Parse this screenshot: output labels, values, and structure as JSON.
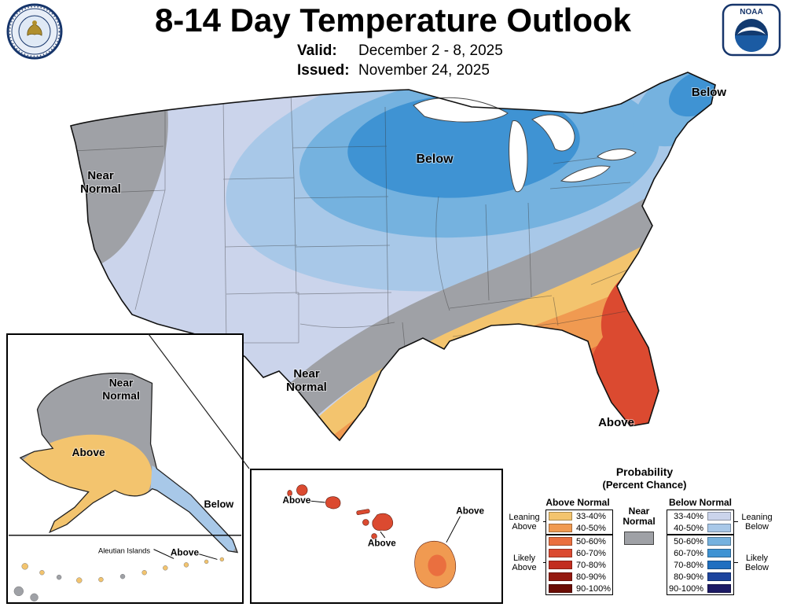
{
  "header": {
    "title": "8-14 Day Temperature Outlook",
    "valid_label": "Valid:",
    "valid_value": "December 2 - 8, 2025",
    "issued_label": "Issued:",
    "issued_value": "November 24, 2025"
  },
  "logos": {
    "noaa_text": "NOAA"
  },
  "colors": {
    "near_normal": "#9FA1A6",
    "above": [
      "#F3C46E",
      "#F09A51",
      "#EA6F3F",
      "#DB4A30",
      "#C22D1F",
      "#951A10",
      "#6B0D05"
    ],
    "below": [
      "#CBD4EB",
      "#A8C8E8",
      "#75B2DF",
      "#3F93D3",
      "#1F6FC0",
      "#1D449E",
      "#1D1B66"
    ]
  },
  "conus_labels": {
    "west_1": "Near",
    "west_2": "Normal",
    "midwest": "Below",
    "maine": "Below",
    "south_1": "Near",
    "south_2": "Normal",
    "florida": "Above"
  },
  "alaska": {
    "near_1": "Near",
    "near_2": "Normal",
    "above": "Above",
    "below": "Below",
    "aleutian": "Aleutian Islands",
    "aleutian_above": "Above"
  },
  "hawaii": {
    "above_1": "Above",
    "above_2": "Above",
    "above_3": "Above"
  },
  "legend": {
    "title": "Probability",
    "subtitle": "(Percent Chance)",
    "above_header": "Above Normal",
    "below_header": "Below Normal",
    "near_normal": "Near Normal",
    "leaning_above": "Leaning Above",
    "likely_above": "Likely Above",
    "leaning_below": "Leaning Below",
    "likely_below": "Likely Below",
    "ranges": [
      "33-40%",
      "40-50%",
      "50-60%",
      "60-70%",
      "70-80%",
      "80-90%",
      "90-100%"
    ]
  }
}
